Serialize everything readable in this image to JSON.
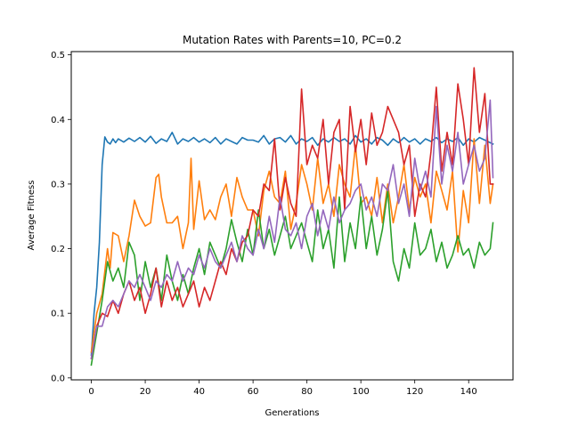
{
  "chart_data": {
    "type": "line",
    "title": "Mutation Rates with Parents=10, PC=0.2",
    "xlabel": "Generations",
    "ylabel": "Average Fitness",
    "xlim": [
      -7.45,
      156.45
    ],
    "ylim": [
      -0.003,
      0.505
    ],
    "xticks": [
      0,
      20,
      40,
      60,
      80,
      100,
      120,
      140
    ],
    "yticks": [
      0.0,
      0.1,
      0.2,
      0.3,
      0.4,
      0.5
    ],
    "ytick_labels": [
      "0.0",
      "0.1",
      "0.2",
      "0.3",
      "0.4",
      "0.5"
    ],
    "grid": false,
    "legend": "none",
    "series": [
      {
        "color": "#1f77b4",
        "x": [
          0,
          1,
          2,
          3,
          4,
          5,
          6,
          7,
          8,
          9,
          10,
          12,
          14,
          16,
          18,
          20,
          22,
          24,
          26,
          28,
          30,
          32,
          34,
          36,
          38,
          40,
          42,
          44,
          46,
          48,
          50,
          52,
          54,
          56,
          58,
          60,
          62,
          64,
          66,
          68,
          70,
          72,
          74,
          76,
          78,
          80,
          82,
          84,
          86,
          88,
          90,
          92,
          94,
          96,
          98,
          100,
          102,
          104,
          106,
          108,
          110,
          112,
          114,
          116,
          118,
          120,
          122,
          124,
          126,
          128,
          130,
          132,
          134,
          136,
          138,
          140,
          142,
          144,
          146,
          148,
          149
        ],
        "y": [
          0.035,
          0.1,
          0.14,
          0.21,
          0.33,
          0.373,
          0.365,
          0.362,
          0.37,
          0.364,
          0.37,
          0.365,
          0.371,
          0.366,
          0.372,
          0.365,
          0.374,
          0.363,
          0.37,
          0.366,
          0.38,
          0.362,
          0.37,
          0.366,
          0.372,
          0.365,
          0.37,
          0.364,
          0.372,
          0.362,
          0.37,
          0.366,
          0.362,
          0.372,
          0.368,
          0.368,
          0.365,
          0.375,
          0.362,
          0.37,
          0.372,
          0.365,
          0.375,
          0.362,
          0.37,
          0.366,
          0.372,
          0.36,
          0.37,
          0.365,
          0.372,
          0.366,
          0.37,
          0.362,
          0.375,
          0.365,
          0.37,
          0.362,
          0.372,
          0.368,
          0.36,
          0.37,
          0.364,
          0.372,
          0.365,
          0.37,
          0.362,
          0.37,
          0.366,
          0.372,
          0.364,
          0.37,
          0.366,
          0.372,
          0.36,
          0.37,
          0.365,
          0.372,
          0.368,
          0.364,
          0.362
        ]
      },
      {
        "color": "#ff7f0e",
        "x": [
          0,
          2,
          4,
          6,
          7,
          8,
          10,
          12,
          14,
          16,
          18,
          20,
          22,
          24,
          25,
          26,
          28,
          30,
          32,
          34,
          36,
          37,
          38,
          40,
          42,
          44,
          46,
          48,
          50,
          52,
          54,
          56,
          58,
          60,
          62,
          64,
          66,
          68,
          70,
          72,
          74,
          76,
          78,
          80,
          82,
          84,
          86,
          88,
          90,
          92,
          94,
          96,
          98,
          100,
          102,
          104,
          106,
          108,
          110,
          112,
          114,
          116,
          118,
          120,
          122,
          124,
          126,
          128,
          130,
          132,
          134,
          136,
          138,
          140,
          142,
          144,
          146,
          148,
          149
        ],
        "y": [
          0.04,
          0.1,
          0.13,
          0.2,
          0.17,
          0.225,
          0.22,
          0.18,
          0.22,
          0.275,
          0.25,
          0.235,
          0.24,
          0.31,
          0.315,
          0.28,
          0.24,
          0.24,
          0.25,
          0.2,
          0.24,
          0.34,
          0.23,
          0.305,
          0.245,
          0.26,
          0.245,
          0.28,
          0.3,
          0.25,
          0.31,
          0.28,
          0.26,
          0.26,
          0.22,
          0.29,
          0.32,
          0.28,
          0.27,
          0.32,
          0.23,
          0.27,
          0.33,
          0.3,
          0.26,
          0.34,
          0.27,
          0.3,
          0.25,
          0.33,
          0.3,
          0.28,
          0.36,
          0.27,
          0.28,
          0.25,
          0.31,
          0.24,
          0.3,
          0.24,
          0.28,
          0.33,
          0.26,
          0.31,
          0.28,
          0.3,
          0.24,
          0.32,
          0.29,
          0.26,
          0.32,
          0.195,
          0.29,
          0.24,
          0.37,
          0.27,
          0.36,
          0.27,
          0.3
        ]
      },
      {
        "color": "#2ca02c",
        "x": [
          0,
          2,
          4,
          6,
          8,
          10,
          12,
          14,
          16,
          18,
          20,
          22,
          24,
          26,
          28,
          30,
          32,
          34,
          36,
          38,
          40,
          42,
          44,
          46,
          48,
          50,
          52,
          54,
          56,
          58,
          60,
          62,
          64,
          66,
          68,
          70,
          72,
          74,
          76,
          78,
          80,
          82,
          84,
          86,
          88,
          90,
          92,
          94,
          96,
          98,
          100,
          102,
          104,
          106,
          108,
          110,
          112,
          114,
          116,
          118,
          120,
          122,
          124,
          126,
          128,
          130,
          132,
          134,
          136,
          138,
          140,
          142,
          144,
          146,
          148,
          149
        ],
        "y": [
          0.02,
          0.07,
          0.12,
          0.18,
          0.15,
          0.17,
          0.14,
          0.21,
          0.19,
          0.12,
          0.18,
          0.14,
          0.17,
          0.12,
          0.19,
          0.15,
          0.12,
          0.16,
          0.13,
          0.17,
          0.2,
          0.16,
          0.21,
          0.19,
          0.17,
          0.2,
          0.245,
          0.21,
          0.18,
          0.23,
          0.19,
          0.26,
          0.2,
          0.23,
          0.19,
          0.22,
          0.25,
          0.2,
          0.22,
          0.24,
          0.21,
          0.18,
          0.26,
          0.2,
          0.23,
          0.17,
          0.28,
          0.18,
          0.24,
          0.2,
          0.28,
          0.2,
          0.25,
          0.19,
          0.23,
          0.29,
          0.18,
          0.15,
          0.2,
          0.17,
          0.24,
          0.19,
          0.2,
          0.23,
          0.18,
          0.21,
          0.17,
          0.19,
          0.22,
          0.19,
          0.2,
          0.17,
          0.21,
          0.19,
          0.2,
          0.24
        ]
      },
      {
        "color": "#d62728",
        "x": [
          0,
          2,
          4,
          6,
          8,
          10,
          12,
          14,
          16,
          18,
          20,
          22,
          24,
          26,
          28,
          30,
          32,
          34,
          36,
          38,
          40,
          42,
          44,
          46,
          48,
          50,
          52,
          54,
          56,
          58,
          60,
          62,
          64,
          66,
          68,
          70,
          72,
          74,
          76,
          78,
          80,
          82,
          84,
          86,
          88,
          90,
          92,
          94,
          96,
          98,
          100,
          102,
          104,
          106,
          108,
          110,
          112,
          114,
          116,
          118,
          120,
          122,
          124,
          126,
          128,
          130,
          132,
          134,
          136,
          138,
          140,
          142,
          144,
          146,
          148,
          149
        ],
        "y": [
          0.03,
          0.08,
          0.1,
          0.095,
          0.12,
          0.1,
          0.13,
          0.15,
          0.12,
          0.14,
          0.1,
          0.13,
          0.17,
          0.11,
          0.15,
          0.12,
          0.14,
          0.11,
          0.13,
          0.15,
          0.11,
          0.14,
          0.12,
          0.15,
          0.18,
          0.16,
          0.2,
          0.18,
          0.21,
          0.22,
          0.26,
          0.25,
          0.3,
          0.29,
          0.37,
          0.26,
          0.31,
          0.27,
          0.25,
          0.447,
          0.33,
          0.36,
          0.34,
          0.4,
          0.3,
          0.38,
          0.4,
          0.26,
          0.42,
          0.35,
          0.4,
          0.33,
          0.41,
          0.36,
          0.38,
          0.42,
          0.4,
          0.38,
          0.33,
          0.36,
          0.25,
          0.3,
          0.28,
          0.35,
          0.45,
          0.32,
          0.38,
          0.33,
          0.455,
          0.4,
          0.33,
          0.48,
          0.38,
          0.44,
          0.3,
          0.3
        ]
      },
      {
        "color": "#9467bd",
        "x": [
          0,
          2,
          4,
          6,
          8,
          10,
          12,
          14,
          16,
          18,
          20,
          22,
          24,
          26,
          28,
          30,
          32,
          34,
          36,
          38,
          40,
          42,
          44,
          46,
          48,
          50,
          52,
          54,
          56,
          58,
          60,
          62,
          64,
          66,
          68,
          70,
          72,
          74,
          76,
          78,
          80,
          82,
          84,
          86,
          88,
          90,
          92,
          94,
          96,
          98,
          100,
          102,
          104,
          106,
          108,
          110,
          112,
          114,
          116,
          118,
          120,
          122,
          124,
          126,
          128,
          130,
          132,
          134,
          136,
          138,
          140,
          142,
          144,
          146,
          148,
          149
        ],
        "y": [
          0.03,
          0.08,
          0.08,
          0.11,
          0.12,
          0.11,
          0.13,
          0.15,
          0.14,
          0.16,
          0.14,
          0.12,
          0.15,
          0.14,
          0.16,
          0.15,
          0.18,
          0.15,
          0.17,
          0.16,
          0.19,
          0.17,
          0.2,
          0.18,
          0.17,
          0.19,
          0.21,
          0.18,
          0.22,
          0.2,
          0.19,
          0.23,
          0.2,
          0.25,
          0.21,
          0.28,
          0.23,
          0.22,
          0.24,
          0.2,
          0.25,
          0.27,
          0.22,
          0.26,
          0.23,
          0.28,
          0.24,
          0.26,
          0.27,
          0.29,
          0.3,
          0.26,
          0.28,
          0.25,
          0.3,
          0.29,
          0.33,
          0.27,
          0.3,
          0.25,
          0.34,
          0.29,
          0.32,
          0.28,
          0.42,
          0.3,
          0.36,
          0.32,
          0.38,
          0.3,
          0.33,
          0.36,
          0.32,
          0.34,
          0.43,
          0.31
        ]
      }
    ]
  }
}
